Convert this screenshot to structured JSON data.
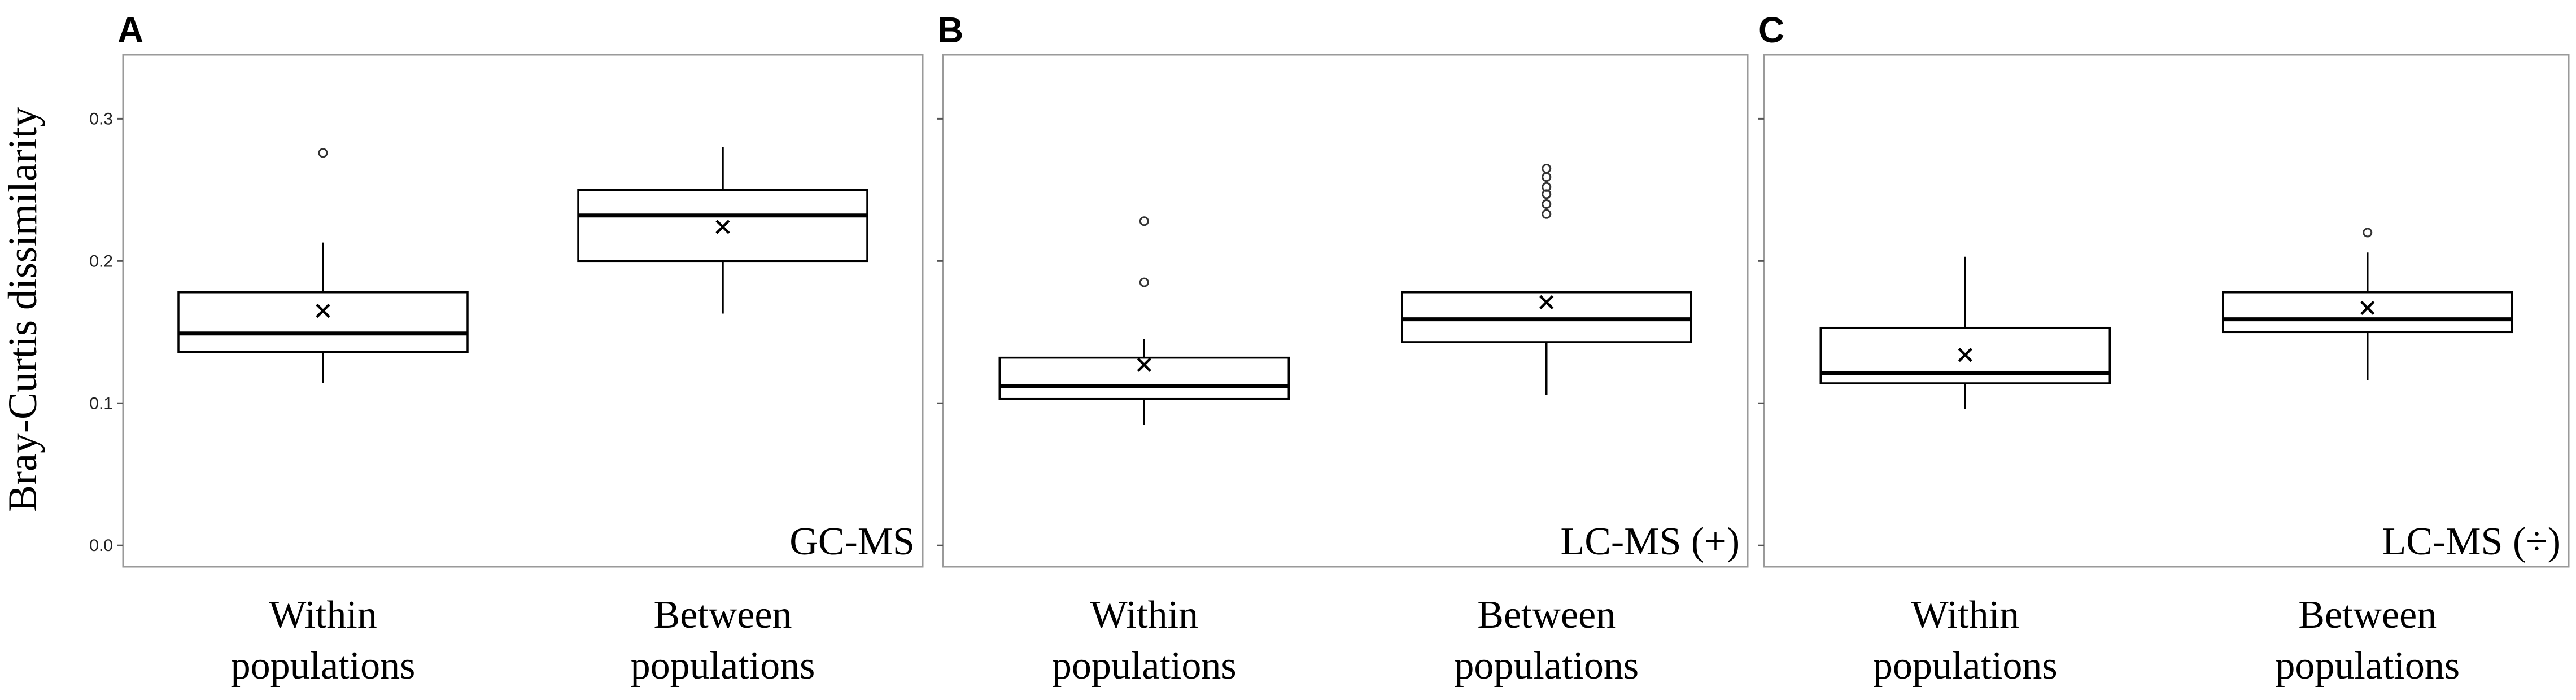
{
  "figure": {
    "ylabel": "Bray-Curtis dissimilarity"
  },
  "chart_data": [
    {
      "type": "box",
      "panel": "A",
      "method_label": "GC-MS",
      "ylabel": "Bray-Curtis dissimilarity",
      "ylim": [
        -0.015,
        0.345
      ],
      "yticks": [
        0.0,
        0.1,
        0.2,
        0.3
      ],
      "ytick_labels": [
        "0.0",
        "0.1",
        "0.2",
        "0.3"
      ],
      "categories": [
        "Within\npopulations",
        "Between\npopulations"
      ],
      "boxes": [
        {
          "min": 0.114,
          "q1": 0.136,
          "median": 0.149,
          "q3": 0.178,
          "max": 0.213,
          "mean": 0.165,
          "outliers": [
            0.276
          ]
        },
        {
          "min": 0.163,
          "q1": 0.2,
          "median": 0.232,
          "q3": 0.25,
          "max": 0.28,
          "mean": 0.224,
          "outliers": []
        }
      ]
    },
    {
      "type": "box",
      "panel": "B",
      "method_label": "LC-MS (+)",
      "ylim": [
        -0.015,
        0.345
      ],
      "yticks": [
        0.0,
        0.1,
        0.2,
        0.3
      ],
      "ytick_labels": [
        "",
        "",
        "",
        ""
      ],
      "categories": [
        "Within\npopulations",
        "Between\npopulations"
      ],
      "boxes": [
        {
          "min": 0.085,
          "q1": 0.103,
          "median": 0.112,
          "q3": 0.132,
          "max": 0.145,
          "mean": 0.127,
          "outliers": [
            0.185,
            0.228
          ]
        },
        {
          "min": 0.106,
          "q1": 0.143,
          "median": 0.159,
          "q3": 0.178,
          "max": 0.178,
          "mean": 0.171,
          "outliers": [
            0.233,
            0.24,
            0.247,
            0.252,
            0.259,
            0.265
          ]
        }
      ]
    },
    {
      "type": "box",
      "panel": "C",
      "method_label": "LC-MS (÷)",
      "ylim": [
        -0.015,
        0.345
      ],
      "yticks": [
        0.0,
        0.1,
        0.2,
        0.3
      ],
      "ytick_labels": [
        "",
        "",
        "",
        ""
      ],
      "categories": [
        "Within\npopulations",
        "Between\npopulations"
      ],
      "boxes": [
        {
          "min": 0.096,
          "q1": 0.114,
          "median": 0.121,
          "q3": 0.153,
          "max": 0.203,
          "mean": 0.134,
          "outliers": []
        },
        {
          "min": 0.116,
          "q1": 0.15,
          "median": 0.159,
          "q3": 0.178,
          "max": 0.206,
          "mean": 0.167,
          "outliers": [
            0.22
          ]
        }
      ]
    }
  ]
}
